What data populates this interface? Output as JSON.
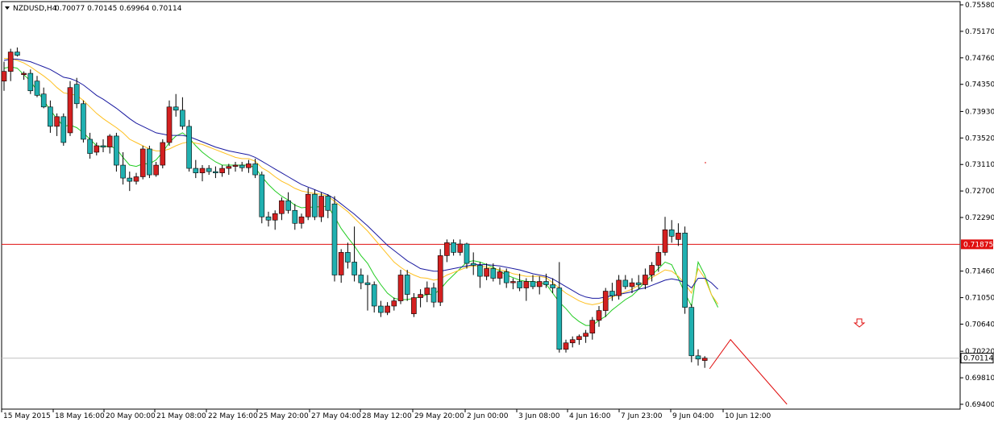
{
  "header": {
    "symbol": "NZDUSD,H4",
    "ohlc": "0.70077 0.70145 0.69964 0.70114"
  },
  "price_axis": {
    "ticks": [
      "0.75580",
      "0.75170",
      "0.74760",
      "0.74350",
      "0.73930",
      "0.73520",
      "0.73110",
      "0.72700",
      "0.72290",
      "0.71460",
      "0.71050",
      "0.70640",
      "0.70220",
      "0.69810",
      "0.69400"
    ],
    "levels": [
      0.7558,
      0.7517,
      0.7476,
      0.7435,
      0.7393,
      0.7352,
      0.7311,
      0.727,
      0.7229,
      0.7146,
      0.7105,
      0.7064,
      0.7022,
      0.6981,
      0.694
    ]
  },
  "time_axis": {
    "ticks": [
      "15 May 2015",
      "18 May 16:00",
      "20 May 00:00",
      "21 May 08:00",
      "22 May 16:00",
      "25 May 20:00",
      "27 May 04:00",
      "28 May 12:00",
      "29 May 20:00",
      "2 Jun 00:00",
      "3 Jun 08:00",
      "4 Jun 16:00",
      "7 Jun 23:00",
      "9 Jun 04:00",
      "10 Jun 12:00"
    ]
  },
  "price_line": {
    "label": "0.71875",
    "value": 0.71875,
    "color": "#e01010"
  },
  "current_price": {
    "label": "0.70114",
    "value": 0.70114
  },
  "colors": {
    "bull": "#d42020",
    "bear": "#20b0b0",
    "wick": "#000000",
    "ma_fast": "#22cc22",
    "ma_mid": "#ffc020",
    "ma_slow": "#1a1aa0",
    "arrow": "#e01010"
  },
  "arrow_icon": "down-arrow-icon",
  "chart_data": {
    "type": "candlestick",
    "title": "NZDUSD,H4",
    "ylim": [
      0.6925,
      0.757
    ],
    "candles": [
      [
        0.744,
        0.747,
        0.7425,
        0.7455
      ],
      [
        0.7455,
        0.749,
        0.744,
        0.7485
      ],
      [
        0.7485,
        0.7492,
        0.7478,
        0.748
      ],
      [
        0.745,
        0.7455,
        0.7442,
        0.7452
      ],
      [
        0.7452,
        0.7458,
        0.742,
        0.7425
      ],
      [
        0.744,
        0.7448,
        0.7415,
        0.7418
      ],
      [
        0.742,
        0.743,
        0.7398,
        0.74
      ],
      [
        0.74,
        0.741,
        0.736,
        0.737
      ],
      [
        0.737,
        0.739,
        0.7355,
        0.7385
      ],
      [
        0.7385,
        0.739,
        0.734,
        0.7345
      ],
      [
        0.736,
        0.744,
        0.7355,
        0.743
      ],
      [
        0.7435,
        0.7445,
        0.7398,
        0.7405
      ],
      [
        0.7405,
        0.741,
        0.7345,
        0.735
      ],
      [
        0.735,
        0.736,
        0.732,
        0.7328
      ],
      [
        0.733,
        0.7345,
        0.7325,
        0.734
      ],
      [
        0.734,
        0.735,
        0.733,
        0.7338
      ],
      [
        0.7338,
        0.7358,
        0.7328,
        0.7355
      ],
      [
        0.7355,
        0.736,
        0.73,
        0.731
      ],
      [
        0.731,
        0.733,
        0.728,
        0.729
      ],
      [
        0.729,
        0.73,
        0.727,
        0.7285
      ],
      [
        0.7285,
        0.7298,
        0.728,
        0.7292
      ],
      [
        0.7292,
        0.734,
        0.7288,
        0.7335
      ],
      [
        0.7335,
        0.734,
        0.729,
        0.7295
      ],
      [
        0.7295,
        0.7315,
        0.7292,
        0.731
      ],
      [
        0.731,
        0.735,
        0.7305,
        0.7345
      ],
      [
        0.7345,
        0.741,
        0.734,
        0.74
      ],
      [
        0.74,
        0.742,
        0.7385,
        0.7395
      ],
      [
        0.7395,
        0.7415,
        0.7365,
        0.737
      ],
      [
        0.737,
        0.738,
        0.73,
        0.7305
      ],
      [
        0.7305,
        0.7318,
        0.729,
        0.7298
      ],
      [
        0.7298,
        0.731,
        0.7285,
        0.7305
      ],
      [
        0.7305,
        0.731,
        0.7295,
        0.73
      ],
      [
        0.73,
        0.7308,
        0.729,
        0.7298
      ],
      [
        0.7298,
        0.731,
        0.7292,
        0.7305
      ],
      [
        0.7305,
        0.7312,
        0.7295,
        0.7308
      ],
      [
        0.7308,
        0.7315,
        0.73,
        0.731
      ],
      [
        0.731,
        0.7315,
        0.73,
        0.7306
      ],
      [
        0.7306,
        0.7318,
        0.7298,
        0.7312
      ],
      [
        0.7312,
        0.732,
        0.729,
        0.7295
      ],
      [
        0.7295,
        0.73,
        0.722,
        0.723
      ],
      [
        0.723,
        0.7238,
        0.7215,
        0.7225
      ],
      [
        0.7225,
        0.724,
        0.721,
        0.7235
      ],
      [
        0.7235,
        0.726,
        0.7225,
        0.7255
      ],
      [
        0.7255,
        0.7268,
        0.7235,
        0.724
      ],
      [
        0.724,
        0.725,
        0.721,
        0.722
      ],
      [
        0.722,
        0.7235,
        0.7212,
        0.723
      ],
      [
        0.723,
        0.7275,
        0.7225,
        0.7265
      ],
      [
        0.7265,
        0.7272,
        0.7225,
        0.723
      ],
      [
        0.723,
        0.7268,
        0.7222,
        0.7262
      ],
      [
        0.7262,
        0.7265,
        0.7228,
        0.724
      ],
      [
        0.725,
        0.7262,
        0.713,
        0.714
      ],
      [
        0.714,
        0.718,
        0.7128,
        0.7175
      ],
      [
        0.7175,
        0.719,
        0.715,
        0.716
      ],
      [
        0.716,
        0.7215,
        0.713,
        0.714
      ],
      [
        0.714,
        0.715,
        0.7118,
        0.7128
      ],
      [
        0.7128,
        0.714,
        0.7085,
        0.7125
      ],
      [
        0.7125,
        0.713,
        0.7082,
        0.7092
      ],
      [
        0.7092,
        0.71,
        0.7075,
        0.7082
      ],
      [
        0.7082,
        0.7098,
        0.7078,
        0.7092
      ],
      [
        0.7092,
        0.7105,
        0.7085,
        0.71
      ],
      [
        0.71,
        0.7148,
        0.7095,
        0.714
      ],
      [
        0.714,
        0.7148,
        0.71,
        0.711
      ],
      [
        0.708,
        0.7112,
        0.7075,
        0.7105
      ],
      [
        0.7105,
        0.7118,
        0.709,
        0.711
      ],
      [
        0.711,
        0.713,
        0.7098,
        0.712
      ],
      [
        0.712,
        0.7128,
        0.709,
        0.7098
      ],
      [
        0.7098,
        0.718,
        0.7092,
        0.717
      ],
      [
        0.717,
        0.7195,
        0.716,
        0.719
      ],
      [
        0.719,
        0.7195,
        0.717,
        0.7175
      ],
      [
        0.7175,
        0.7195,
        0.717,
        0.7188
      ],
      [
        0.7188,
        0.719,
        0.715,
        0.7158
      ],
      [
        0.7158,
        0.7175,
        0.714,
        0.7155
      ],
      [
        0.7155,
        0.716,
        0.712,
        0.7138
      ],
      [
        0.7138,
        0.7158,
        0.7132,
        0.715
      ],
      [
        0.715,
        0.7158,
        0.713,
        0.7135
      ],
      [
        0.7135,
        0.7152,
        0.7125,
        0.7145
      ],
      [
        0.7145,
        0.715,
        0.712,
        0.7128
      ],
      [
        0.7128,
        0.7135,
        0.7118,
        0.713
      ],
      [
        0.713,
        0.7142,
        0.7115,
        0.712
      ],
      [
        0.712,
        0.7135,
        0.71,
        0.713
      ],
      [
        0.713,
        0.714,
        0.7118,
        0.7122
      ],
      [
        0.7122,
        0.7138,
        0.711,
        0.713
      ],
      [
        0.713,
        0.7142,
        0.712,
        0.7125
      ],
      [
        0.7125,
        0.7135,
        0.7112,
        0.712
      ],
      [
        0.712,
        0.716,
        0.702,
        0.7025
      ],
      [
        0.7025,
        0.704,
        0.702,
        0.7035
      ],
      [
        0.7035,
        0.7045,
        0.7028,
        0.704
      ],
      [
        0.704,
        0.7048,
        0.7032,
        0.7045
      ],
      [
        0.7045,
        0.7055,
        0.7035,
        0.705
      ],
      [
        0.705,
        0.7075,
        0.704,
        0.707
      ],
      [
        0.707,
        0.7092,
        0.706,
        0.7085
      ],
      [
        0.7085,
        0.712,
        0.7075,
        0.7115
      ],
      [
        0.7115,
        0.7128,
        0.71,
        0.7108
      ],
      [
        0.7108,
        0.714,
        0.7102,
        0.7132
      ],
      [
        0.7132,
        0.714,
        0.7118,
        0.7122
      ],
      [
        0.7122,
        0.7135,
        0.7112,
        0.7128
      ],
      [
        0.7128,
        0.714,
        0.7118,
        0.7125
      ],
      [
        0.7125,
        0.715,
        0.7118,
        0.714
      ],
      [
        0.714,
        0.716,
        0.713,
        0.7155
      ],
      [
        0.7155,
        0.7185,
        0.7145,
        0.7175
      ],
      [
        0.7175,
        0.723,
        0.717,
        0.721
      ],
      [
        0.721,
        0.7225,
        0.719,
        0.72
      ],
      [
        0.7195,
        0.722,
        0.7185,
        0.7205
      ],
      [
        0.7205,
        0.7215,
        0.708,
        0.709
      ],
      [
        0.709,
        0.7095,
        0.7005,
        0.7015
      ],
      [
        0.7015,
        0.7025,
        0.7,
        0.701
      ],
      [
        0.70077,
        0.70145,
        0.69964,
        0.70114
      ]
    ],
    "moving_averages": [
      {
        "name": "fast",
        "values": [
          0.746,
          0.7462,
          0.746,
          0.745,
          0.744,
          0.7425,
          0.741,
          0.7395,
          0.7382,
          0.737,
          0.7372,
          0.7368,
          0.736,
          0.735,
          0.734,
          0.7338,
          0.734,
          0.7335,
          0.7322,
          0.731,
          0.7308,
          0.7312,
          0.7312,
          0.7318,
          0.733,
          0.7345,
          0.7355,
          0.736,
          0.7352,
          0.734,
          0.733,
          0.7322,
          0.7315,
          0.731,
          0.731,
          0.731,
          0.731,
          0.731,
          0.7306,
          0.7292,
          0.728,
          0.727,
          0.7262,
          0.7256,
          0.7248,
          0.7244,
          0.7245,
          0.7245,
          0.7246,
          0.7246,
          0.723,
          0.7212,
          0.7198,
          0.7185,
          0.717,
          0.7158,
          0.714,
          0.7125,
          0.7112,
          0.7104,
          0.7102,
          0.7102,
          0.7104,
          0.7106,
          0.711,
          0.711,
          0.7118,
          0.713,
          0.714,
          0.715,
          0.716,
          0.7162,
          0.716,
          0.7156,
          0.7152,
          0.7146,
          0.714,
          0.7136,
          0.7132,
          0.713,
          0.713,
          0.7128,
          0.7126,
          0.7112,
          0.7098,
          0.7088,
          0.7076,
          0.7068,
          0.7062,
          0.7062,
          0.707,
          0.7076,
          0.7086,
          0.7094,
          0.7102,
          0.7108,
          0.7118,
          0.713,
          0.714,
          0.715,
          0.716,
          0.7156,
          0.7135,
          0.7112,
          0.7092
        ]
      },
      {
        "name": "mid",
        "values": [
          0.7475,
          0.7475,
          0.7472,
          0.7468,
          0.7462,
          0.7455,
          0.7448,
          0.744,
          0.743,
          0.7422,
          0.742,
          0.7418,
          0.741,
          0.74,
          0.739,
          0.7382,
          0.7375,
          0.7368,
          0.736,
          0.735,
          0.7345,
          0.734,
          0.7335,
          0.7332,
          0.7332,
          0.7335,
          0.734,
          0.7344,
          0.7346,
          0.7344,
          0.7342,
          0.7338,
          0.7334,
          0.733,
          0.7326,
          0.7322,
          0.732,
          0.732,
          0.7316,
          0.7306,
          0.73,
          0.7292,
          0.7285,
          0.728,
          0.7274,
          0.727,
          0.7268,
          0.7266,
          0.7265,
          0.7262,
          0.7254,
          0.7246,
          0.7238,
          0.7228,
          0.7218,
          0.7208,
          0.7196,
          0.7184,
          0.7172,
          0.716,
          0.7152,
          0.7145,
          0.714,
          0.7136,
          0.7135,
          0.7132,
          0.7134,
          0.714,
          0.7144,
          0.7148,
          0.7152,
          0.7154,
          0.7154,
          0.7152,
          0.715,
          0.7148,
          0.7146,
          0.7142,
          0.714,
          0.7138,
          0.7138,
          0.7138,
          0.7136,
          0.7128,
          0.712,
          0.7112,
          0.7106,
          0.71,
          0.7096,
          0.7094,
          0.7096,
          0.71,
          0.7106,
          0.711,
          0.7114,
          0.7118,
          0.7124,
          0.713,
          0.7136,
          0.7142,
          0.7148,
          0.7146,
          0.7138,
          0.7126,
          0.7112
        ]
      },
      {
        "name": "slow",
        "values": [
          0.7472,
          0.7474,
          0.7474,
          0.7472,
          0.747,
          0.7466,
          0.7462,
          0.7458,
          0.7452,
          0.7446,
          0.7444,
          0.744,
          0.7434,
          0.7426,
          0.7418,
          0.7412,
          0.7405,
          0.7398,
          0.739,
          0.7382,
          0.7375,
          0.737,
          0.7365,
          0.736,
          0.7358,
          0.7356,
          0.7356,
          0.7356,
          0.7354,
          0.735,
          0.7346,
          0.7342,
          0.7338,
          0.7335,
          0.7332,
          0.733,
          0.7328,
          0.7326,
          0.7322,
          0.7316,
          0.731,
          0.7304,
          0.7298,
          0.7292,
          0.7286,
          0.728,
          0.7276,
          0.7272,
          0.7268,
          0.7264,
          0.7258,
          0.725,
          0.7242,
          0.7234,
          0.7225,
          0.7216,
          0.7206,
          0.7196,
          0.7186,
          0.7178,
          0.717,
          0.7162,
          0.7156,
          0.715,
          0.7148,
          0.7146,
          0.7146,
          0.7148,
          0.715,
          0.7152,
          0.7154,
          0.7156,
          0.7156,
          0.7156,
          0.7155,
          0.7154,
          0.7152,
          0.715,
          0.7148,
          0.7145,
          0.7142,
          0.714,
          0.7138,
          0.7134,
          0.7128,
          0.7122,
          0.7116,
          0.711,
          0.7106,
          0.7104,
          0.7104,
          0.7106,
          0.7108,
          0.711,
          0.7112,
          0.7114,
          0.7118,
          0.712,
          0.7124,
          0.7128,
          0.7132,
          0.7134,
          0.7132,
          0.7128,
          0.712
        ]
      }
    ],
    "projection": [
      [
        0.6995,
        0.704
      ],
      [
        0.704,
        0.694
      ]
    ],
    "mark": 0.7315
  }
}
